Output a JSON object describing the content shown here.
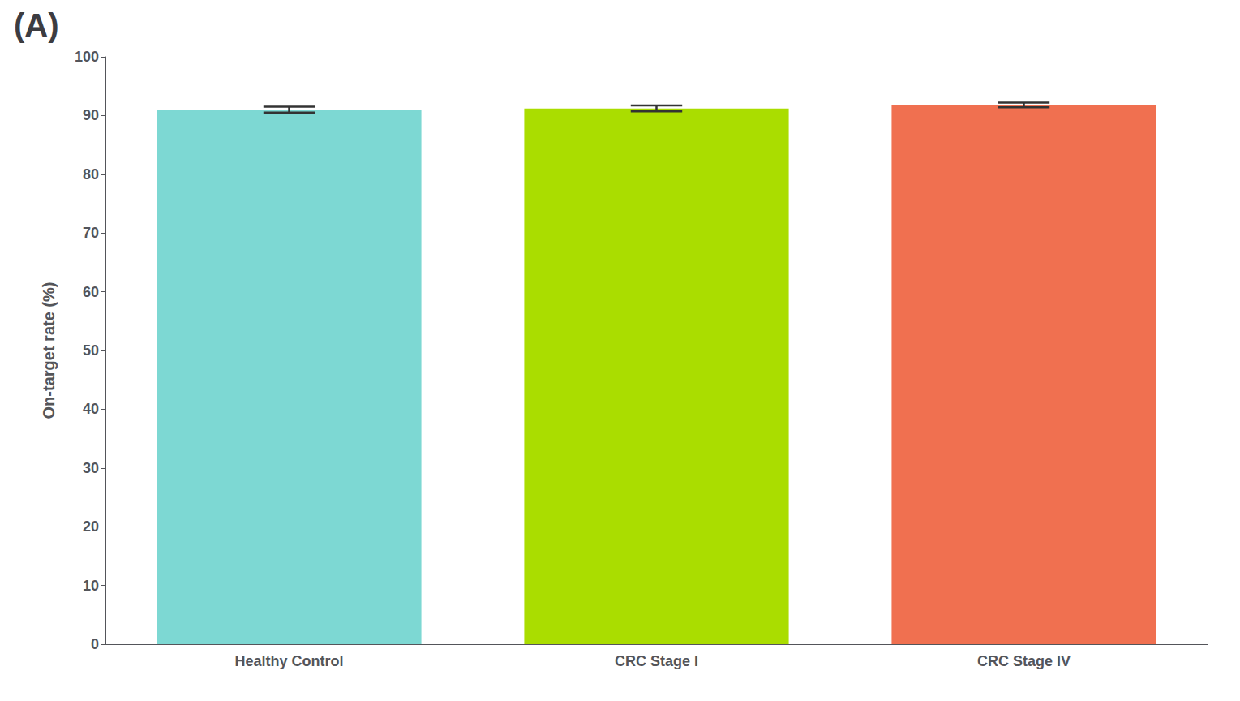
{
  "chart_data": {
    "type": "bar",
    "annotation": "(A)",
    "ylabel": "On-target rate (%)",
    "categories": [
      "Healthy Control",
      "CRC Stage I",
      "CRC Stage IV"
    ],
    "values": [
      91.0,
      91.2,
      91.8
    ],
    "errors": [
      0.5,
      0.5,
      0.4
    ],
    "colors": [
      "#7DD8D3",
      "#AADD00",
      "#F07050"
    ],
    "ylim": [
      0,
      100
    ],
    "yticks": [
      0,
      10,
      20,
      30,
      40,
      50,
      60,
      70,
      80,
      90,
      100
    ],
    "grid": false
  }
}
